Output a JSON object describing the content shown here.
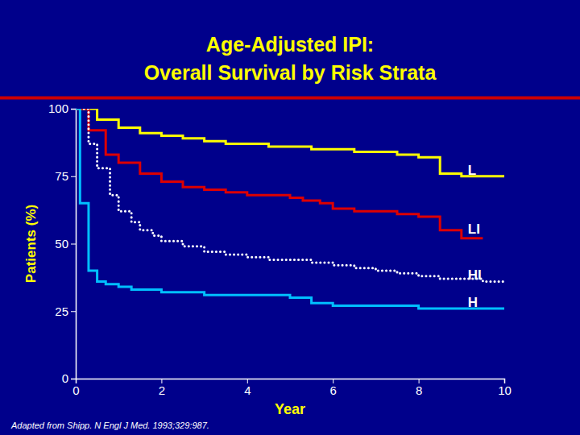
{
  "chart_data": {
    "type": "step",
    "title": "Age-Adjusted IPI:",
    "subtitle": "Overall Survival by Risk Strata",
    "x_label": "Year",
    "y_label": "Patients (%)",
    "xlim": [
      0,
      10
    ],
    "ylim": [
      0,
      100
    ],
    "xticks": [
      0,
      2,
      4,
      6,
      8,
      10
    ],
    "yticks": [
      0,
      25,
      50,
      75,
      100
    ],
    "series": [
      {
        "name": "L",
        "color": "#FFFF00",
        "line_style": "solid",
        "x": [
          0,
          0.5,
          1.0,
          1.5,
          2.0,
          2.5,
          3.0,
          3.5,
          4.0,
          4.5,
          5.0,
          5.5,
          6.0,
          6.5,
          7.0,
          7.5,
          8.0,
          8.5,
          9.0,
          9.5,
          10.0
        ],
        "values": [
          100,
          96,
          93,
          91,
          90,
          89,
          88,
          87,
          87,
          86,
          86,
          85,
          85,
          84,
          84,
          83,
          82,
          76,
          75,
          75,
          75
        ]
      },
      {
        "name": "LI",
        "color": "#DD0000",
        "line_style": "solid",
        "x": [
          0,
          0.3,
          0.7,
          1.0,
          1.5,
          2.0,
          2.5,
          3.0,
          3.5,
          4.0,
          4.5,
          5.0,
          5.3,
          5.7,
          6.0,
          6.5,
          7.0,
          7.5,
          8.0,
          8.5,
          9.0,
          9.5
        ],
        "values": [
          100,
          92,
          83,
          80,
          76,
          73,
          71,
          70,
          69,
          68,
          68,
          67,
          66,
          65,
          63,
          62,
          62,
          61,
          60,
          55,
          52,
          52
        ]
      },
      {
        "name": "HI",
        "color": "#FFFFFF",
        "line_style": "dotted",
        "x": [
          0,
          0.3,
          0.5,
          0.8,
          1.0,
          1.3,
          1.5,
          1.8,
          2.0,
          2.5,
          3.0,
          3.5,
          4.0,
          4.5,
          5.0,
          5.5,
          6.0,
          6.5,
          7.0,
          7.5,
          8.0,
          8.5,
          9.0,
          9.5,
          10.0
        ],
        "values": [
          100,
          87,
          78,
          68,
          62,
          58,
          55,
          53,
          51,
          49,
          47,
          46,
          45,
          44,
          44,
          43,
          42,
          41,
          40,
          39,
          38,
          37,
          37,
          36,
          36
        ]
      },
      {
        "name": "H",
        "color": "#00BFFF",
        "line_style": "solid",
        "x": [
          0,
          0.1,
          0.3,
          0.5,
          0.7,
          1.0,
          1.3,
          1.5,
          2.0,
          2.5,
          3.0,
          3.5,
          4.0,
          5.0,
          5.5,
          6.0,
          7.0,
          8.0,
          9.0,
          10.0
        ],
        "values": [
          100,
          65,
          40,
          36,
          35,
          34,
          33,
          33,
          32,
          32,
          31,
          31,
          31,
          30,
          28,
          27,
          27,
          26,
          26,
          26
        ]
      }
    ],
    "annotations": [
      {
        "text": "L",
        "x": 9.15,
        "y": 77
      },
      {
        "text": "LI",
        "x": 9.15,
        "y": 55
      },
      {
        "text": "HI",
        "x": 9.15,
        "y": 38
      },
      {
        "text": "H",
        "x": 9.15,
        "y": 28
      },
      {
        "text": "Adapted from Shipp. N Engl J Med. 1993;329:987."
      }
    ]
  }
}
